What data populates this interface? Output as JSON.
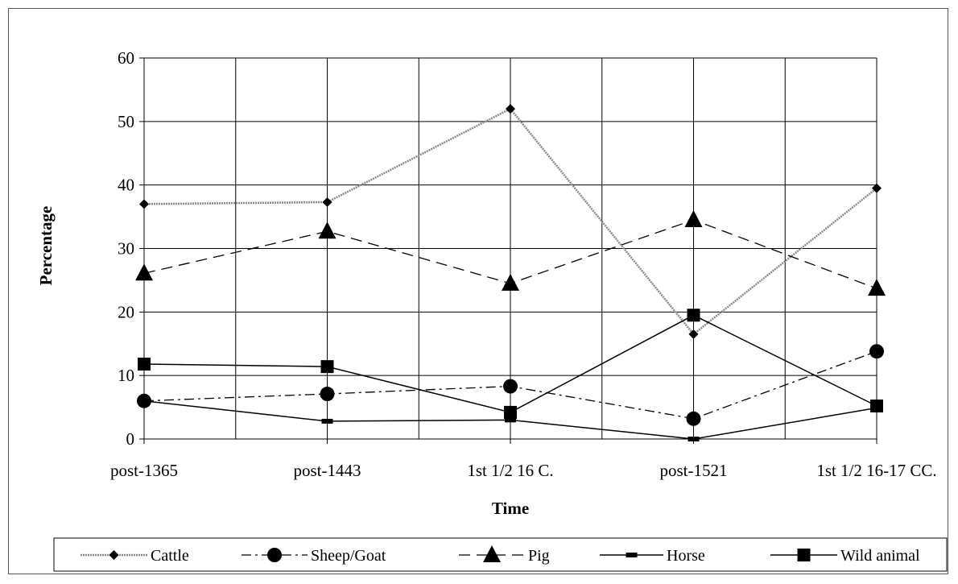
{
  "chart_data": {
    "type": "line",
    "xlabel": "Time",
    "ylabel": "Percentage",
    "categories": [
      "post-1365",
      "post-1443",
      "1st 1/2 16 C.",
      "post-1521",
      "1st 1/2 16-17 CC."
    ],
    "ylim": [
      0,
      60
    ],
    "yticks": [
      "0",
      "10",
      "20",
      "30",
      "40",
      "50",
      "60"
    ],
    "grid": true,
    "legend_position": "bottom",
    "series": [
      {
        "name": "Cattle",
        "values": [
          37,
          37.3,
          52,
          16.5,
          39.5
        ],
        "marker": "diamond",
        "line": "dotted-double",
        "color": "#888888"
      },
      {
        "name": "Sheep/Goat",
        "values": [
          6,
          7.1,
          8.3,
          3.2,
          13.8
        ],
        "marker": "circle",
        "line": "dash-dot",
        "color": "#000000"
      },
      {
        "name": "Pig",
        "values": [
          26.1,
          32.7,
          24.5,
          34.5,
          23.7
        ],
        "marker": "triangle",
        "line": "dashed",
        "color": "#000000"
      },
      {
        "name": "Horse",
        "values": [
          6,
          2.8,
          3,
          0,
          4.9
        ],
        "marker": "dash",
        "line": "solid",
        "color": "#000000"
      },
      {
        "name": "Wild animal",
        "values": [
          11.8,
          11.4,
          4.2,
          19.5,
          5.2
        ],
        "marker": "square",
        "line": "solid",
        "color": "#000000"
      }
    ]
  }
}
